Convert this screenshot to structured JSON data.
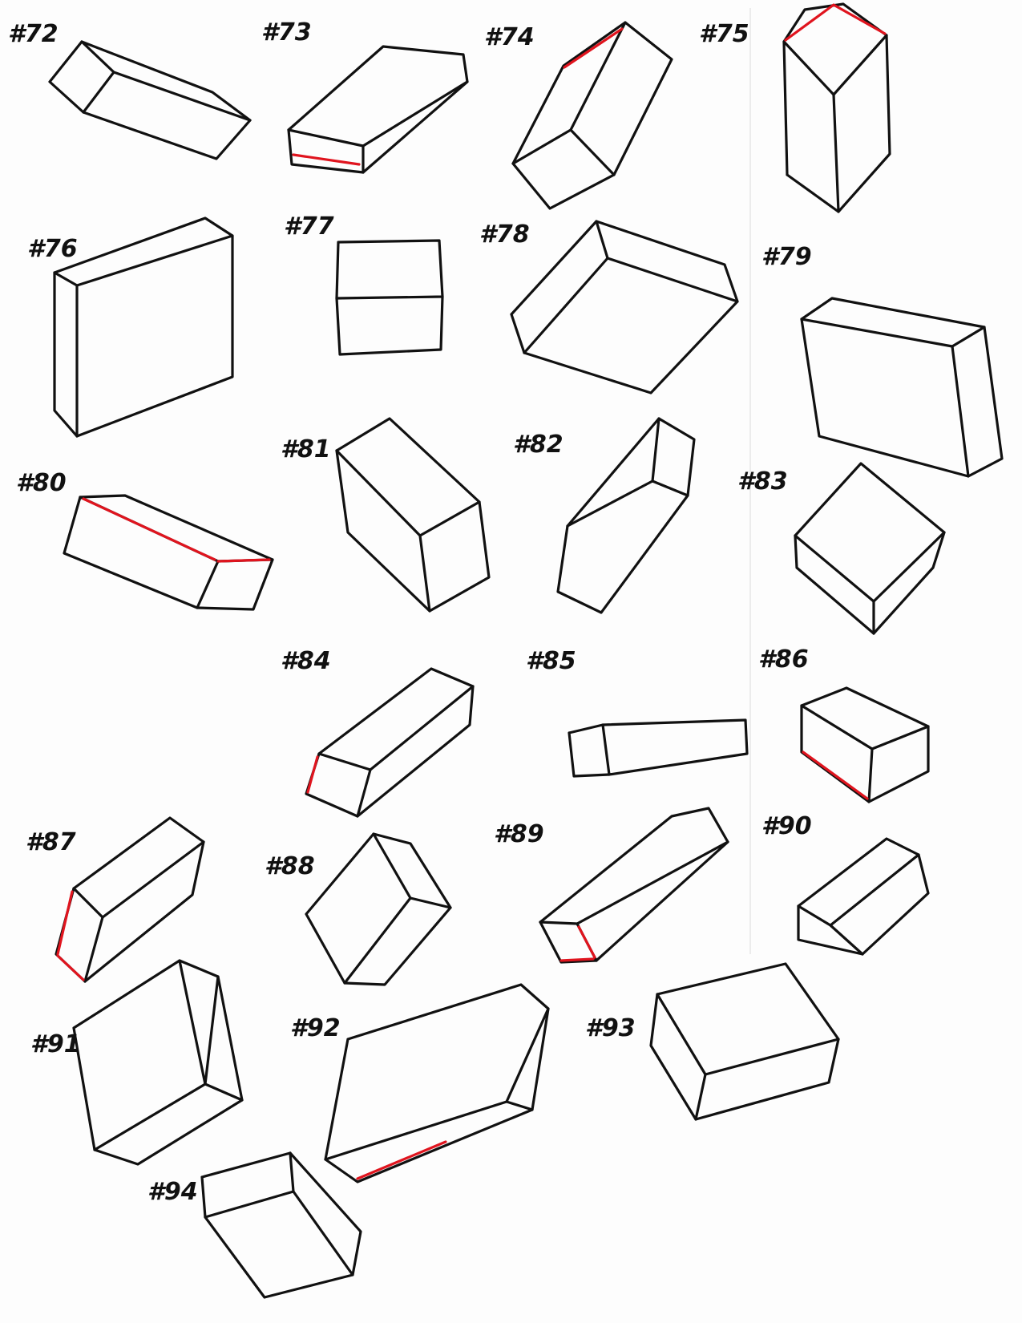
{
  "colors": {
    "ink": "#111111",
    "accent": "#e0141e",
    "paper": "#fdfdfd",
    "margin_line": "#e6e6e6"
  },
  "boxes": [
    {
      "label": "#72",
      "highlight": []
    },
    {
      "label": "#73",
      "highlight": [
        "bottom-front-edge"
      ]
    },
    {
      "label": "#74",
      "highlight": [
        "top-left-edge"
      ]
    },
    {
      "label": "#75",
      "highlight": [
        "top-face-edges"
      ]
    },
    {
      "label": "#76",
      "highlight": []
    },
    {
      "label": "#77",
      "highlight": []
    },
    {
      "label": "#78",
      "highlight": []
    },
    {
      "label": "#79",
      "highlight": []
    },
    {
      "label": "#80",
      "highlight": [
        "top-long-edge",
        "short-top-edge"
      ]
    },
    {
      "label": "#81",
      "highlight": []
    },
    {
      "label": "#82",
      "highlight": []
    },
    {
      "label": "#83",
      "highlight": []
    },
    {
      "label": "#84",
      "highlight": [
        "left-vertical-edge"
      ]
    },
    {
      "label": "#85",
      "highlight": []
    },
    {
      "label": "#86",
      "highlight": [
        "bottom-left-edge"
      ]
    },
    {
      "label": "#87",
      "highlight": [
        "left-vertical-edge"
      ]
    },
    {
      "label": "#88",
      "highlight": []
    },
    {
      "label": "#89",
      "highlight": [
        "bottom-front-edge"
      ]
    },
    {
      "label": "#90",
      "highlight": []
    },
    {
      "label": "#91",
      "highlight": []
    },
    {
      "label": "#92",
      "highlight": [
        "bottom-edge"
      ]
    },
    {
      "label": "#93",
      "highlight": []
    },
    {
      "label": "#94",
      "highlight": []
    }
  ]
}
